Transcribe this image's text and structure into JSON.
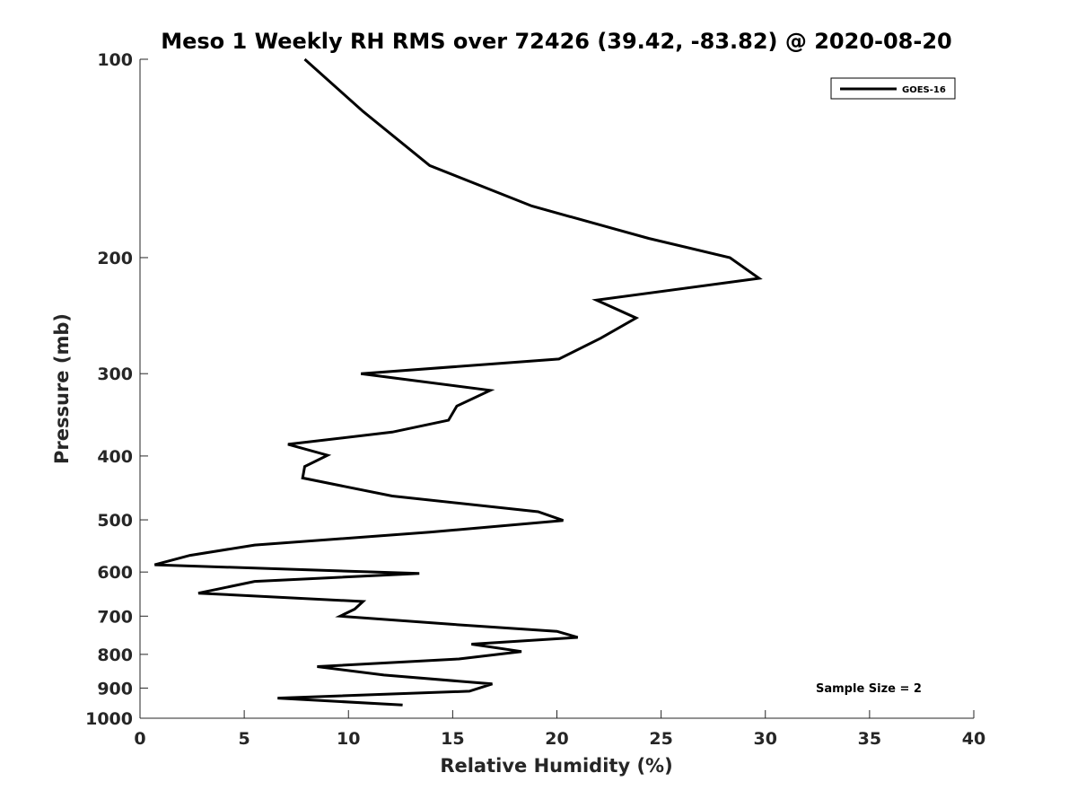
{
  "chart_data": {
    "type": "line",
    "title": "Meso 1 Weekly RH RMS over 72426 (39.42, -83.82) @ 2020-08-20",
    "xlabel": "Relative Humidity (%)",
    "ylabel": "Pressure (mb)",
    "xlim": [
      0,
      40
    ],
    "ylim": [
      100,
      1000
    ],
    "yscale": "log",
    "yreversed": true,
    "grid": false,
    "legend_position": "top-right",
    "xticks": [
      "0",
      "5",
      "10",
      "15",
      "20",
      "25",
      "30",
      "35",
      "40"
    ],
    "yticks": [
      "100",
      "200",
      "300",
      "400",
      "500",
      "600",
      "700",
      "800",
      "900",
      "1000"
    ],
    "annotation": "Sample Size = 2",
    "series": [
      {
        "name": "GOES-16",
        "color": "#000000",
        "points": [
          [
            7.9,
            100
          ],
          [
            10.7,
            120
          ],
          [
            13.9,
            145
          ],
          [
            18.8,
            167
          ],
          [
            24.4,
            187
          ],
          [
            28.3,
            200
          ],
          [
            29.7,
            215
          ],
          [
            21.9,
            232
          ],
          [
            23.8,
            247
          ],
          [
            22.1,
            265
          ],
          [
            20.1,
            285
          ],
          [
            10.6,
            300
          ],
          [
            16.8,
            318
          ],
          [
            15.2,
            336
          ],
          [
            14.8,
            353
          ],
          [
            12.1,
            368
          ],
          [
            7.1,
            384
          ],
          [
            9.0,
            399
          ],
          [
            7.9,
            415
          ],
          [
            7.8,
            432
          ],
          [
            12.1,
            460
          ],
          [
            19.1,
            486
          ],
          [
            20.3,
            501
          ],
          [
            13.9,
            522
          ],
          [
            5.5,
            546
          ],
          [
            2.4,
            566
          ],
          [
            0.7,
            585
          ],
          [
            13.4,
            603
          ],
          [
            5.5,
            620
          ],
          [
            2.8,
            646
          ],
          [
            10.7,
            665
          ],
          [
            10.3,
            683
          ],
          [
            9.6,
            700
          ],
          [
            14.9,
            720
          ],
          [
            20.0,
            738
          ],
          [
            21.0,
            754
          ],
          [
            15.9,
            772
          ],
          [
            18.3,
            792
          ],
          [
            15.3,
            813
          ],
          [
            8.5,
            835
          ],
          [
            11.7,
            860
          ],
          [
            16.9,
            887
          ],
          [
            15.8,
            910
          ],
          [
            6.6,
            932
          ],
          [
            12.6,
            955
          ]
        ]
      }
    ]
  }
}
